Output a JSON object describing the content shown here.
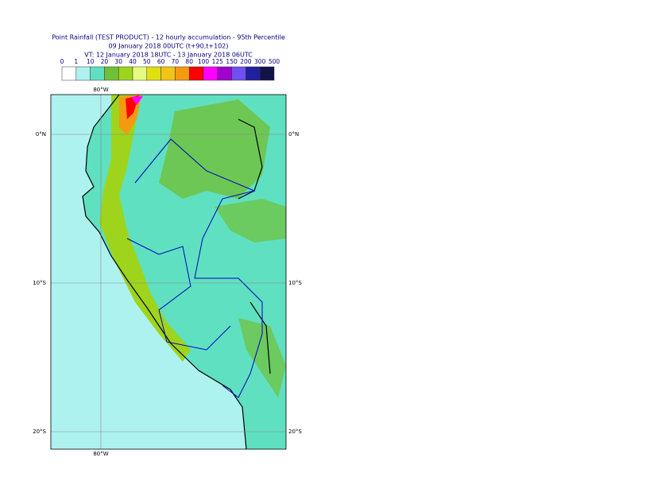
{
  "header": {
    "title": "Point Rainfall (TEST PRODUCT) - 12 hourly accumulation - 95th Percentile",
    "base_time": "09 January 2018 00UTC (t+90,t+102)",
    "valid_time": "VT: 12 January 2018 18UTC - 13 January 2018 06UTC"
  },
  "legend": {
    "labels": [
      "0",
      "1",
      "10",
      "20",
      "30",
      "40",
      "50",
      "60",
      "70",
      "80",
      "100",
      "125",
      "150",
      "200",
      "300",
      "500"
    ],
    "colors": [
      "#ffffff",
      "#aef2f0",
      "#5fe0c0",
      "#70c038",
      "#9ed41c",
      "#e6fa80",
      "#e0e010",
      "#f2c418",
      "#f49a10",
      "#ff0000",
      "#ff00ff",
      "#a000d0",
      "#7050f0",
      "#2020a0",
      "#12124a"
    ]
  },
  "map": {
    "lon_labels": [
      "80°W"
    ],
    "lat_labels": [
      "0°N",
      "10°S",
      "20°S"
    ]
  }
}
